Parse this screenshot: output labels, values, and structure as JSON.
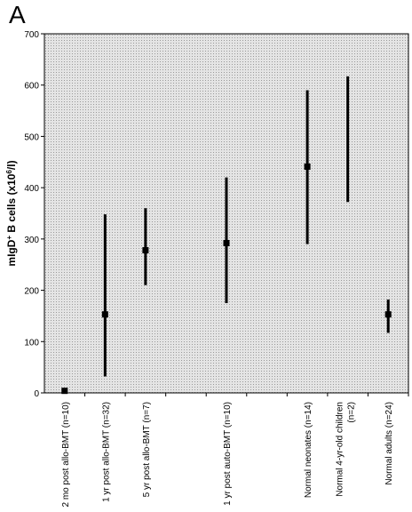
{
  "chart_data": {
    "type": "range",
    "panel_label": "A",
    "y_label": [
      "mIgD",
      "+",
      " B cells (x10",
      "6",
      "/l)"
    ],
    "categories": [
      "2 mo post allo-BMT (n=10)",
      "1 yr post allo-BMT (n=32)",
      "5 yr post allo-BMT (n=7)",
      null,
      "1 yr post auto-BMT (n=10)",
      null,
      "Normal neonates (n=14)",
      [
        "Normal 4-yr-old children",
        "(n=2)"
      ],
      "Normal adults (n=24)"
    ],
    "values": [
      4,
      153,
      278,
      null,
      292,
      null,
      441,
      null,
      153
    ],
    "low": [
      null,
      32,
      210,
      null,
      175,
      null,
      290,
      372,
      117
    ],
    "high": [
      null,
      348,
      360,
      null,
      420,
      null,
      590,
      617,
      182
    ],
    "color": "#000000",
    "ylim": [
      0,
      700
    ],
    "yticks": [
      0,
      100,
      200,
      300,
      400,
      500,
      600,
      700
    ]
  }
}
